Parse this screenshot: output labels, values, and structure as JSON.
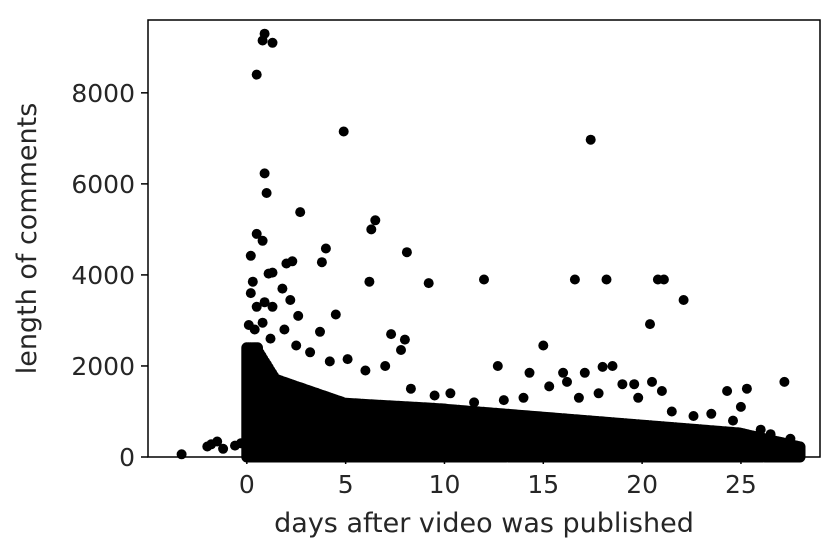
{
  "chart_data": {
    "type": "scatter",
    "title": "",
    "xlabel": "days after video was published",
    "ylabel": "length of comments",
    "xlim": [
      -5,
      29
    ],
    "ylim": [
      0,
      9600
    ],
    "xticks": [
      0,
      5,
      10,
      15,
      20,
      25
    ],
    "yticks": [
      0,
      2000,
      4000,
      6000,
      8000
    ],
    "grid": false,
    "marker_color": "#000000",
    "series": [
      {
        "name": "comments",
        "points": [
          [
            -3.3,
            60
          ],
          [
            -2.0,
            230
          ],
          [
            -1.8,
            280
          ],
          [
            -1.5,
            340
          ],
          [
            -1.2,
            180
          ],
          [
            -0.6,
            250
          ],
          [
            -0.3,
            300
          ],
          [
            0.9,
            9300
          ],
          [
            0.8,
            9150
          ],
          [
            1.3,
            9100
          ],
          [
            0.5,
            8400
          ],
          [
            4.9,
            7150
          ],
          [
            17.4,
            6970
          ],
          [
            0.9,
            6230
          ],
          [
            1.0,
            5800
          ],
          [
            2.7,
            5380
          ],
          [
            6.3,
            5000
          ],
          [
            6.5,
            5200
          ],
          [
            0.2,
            4420
          ],
          [
            0.5,
            4900
          ],
          [
            0.8,
            4750
          ],
          [
            1.1,
            4030
          ],
          [
            1.3,
            4050
          ],
          [
            2.0,
            4250
          ],
          [
            2.3,
            4300
          ],
          [
            3.8,
            4280
          ],
          [
            4.0,
            4580
          ],
          [
            6.2,
            3850
          ],
          [
            8.1,
            4500
          ],
          [
            9.2,
            3820
          ],
          [
            12.0,
            3900
          ],
          [
            16.6,
            3900
          ],
          [
            18.2,
            3900
          ],
          [
            20.8,
            3900
          ],
          [
            21.1,
            3900
          ],
          [
            22.1,
            3450
          ],
          [
            0.3,
            3850
          ],
          [
            0.2,
            3600
          ],
          [
            0.5,
            3300
          ],
          [
            0.9,
            3400
          ],
          [
            1.3,
            3300
          ],
          [
            1.8,
            3700
          ],
          [
            2.2,
            3450
          ],
          [
            2.6,
            3100
          ],
          [
            3.7,
            2750
          ],
          [
            4.5,
            3130
          ],
          [
            7.3,
            2700
          ],
          [
            8.0,
            2580
          ],
          [
            20.4,
            2920
          ],
          [
            0.1,
            2900
          ],
          [
            0.4,
            2800
          ],
          [
            0.8,
            2950
          ],
          [
            1.2,
            2600
          ],
          [
            1.9,
            2800
          ],
          [
            2.5,
            2450
          ],
          [
            3.2,
            2300
          ],
          [
            4.2,
            2100
          ],
          [
            5.1,
            2150
          ],
          [
            6.0,
            1900
          ],
          [
            7.0,
            2000
          ],
          [
            7.8,
            2350
          ],
          [
            8.3,
            1500
          ],
          [
            12.7,
            2000
          ],
          [
            15.0,
            2450
          ],
          [
            14.3,
            1850
          ],
          [
            16.0,
            1850
          ],
          [
            15.3,
            1550
          ],
          [
            16.2,
            1650
          ],
          [
            17.1,
            1850
          ],
          [
            18.0,
            1980
          ],
          [
            18.5,
            2000
          ],
          [
            19.0,
            1600
          ],
          [
            19.6,
            1600
          ],
          [
            20.5,
            1650
          ],
          [
            21.0,
            1450
          ],
          [
            24.3,
            1450
          ],
          [
            25.3,
            1500
          ],
          [
            27.2,
            1650
          ],
          [
            25.0,
            1100
          ],
          [
            26.0,
            600
          ],
          [
            27.5,
            400
          ],
          [
            9.5,
            1350
          ],
          [
            10.3,
            1400
          ],
          [
            11.5,
            1200
          ],
          [
            13.0,
            1250
          ],
          [
            14.0,
            1300
          ],
          [
            16.8,
            1300
          ],
          [
            17.8,
            1400
          ],
          [
            19.8,
            1300
          ],
          [
            21.5,
            1000
          ],
          [
            22.6,
            900
          ],
          [
            23.5,
            950
          ],
          [
            24.6,
            800
          ],
          [
            26.5,
            500
          ],
          [
            27.8,
            250
          ],
          [
            28.0,
            200
          ]
        ]
      }
    ]
  }
}
